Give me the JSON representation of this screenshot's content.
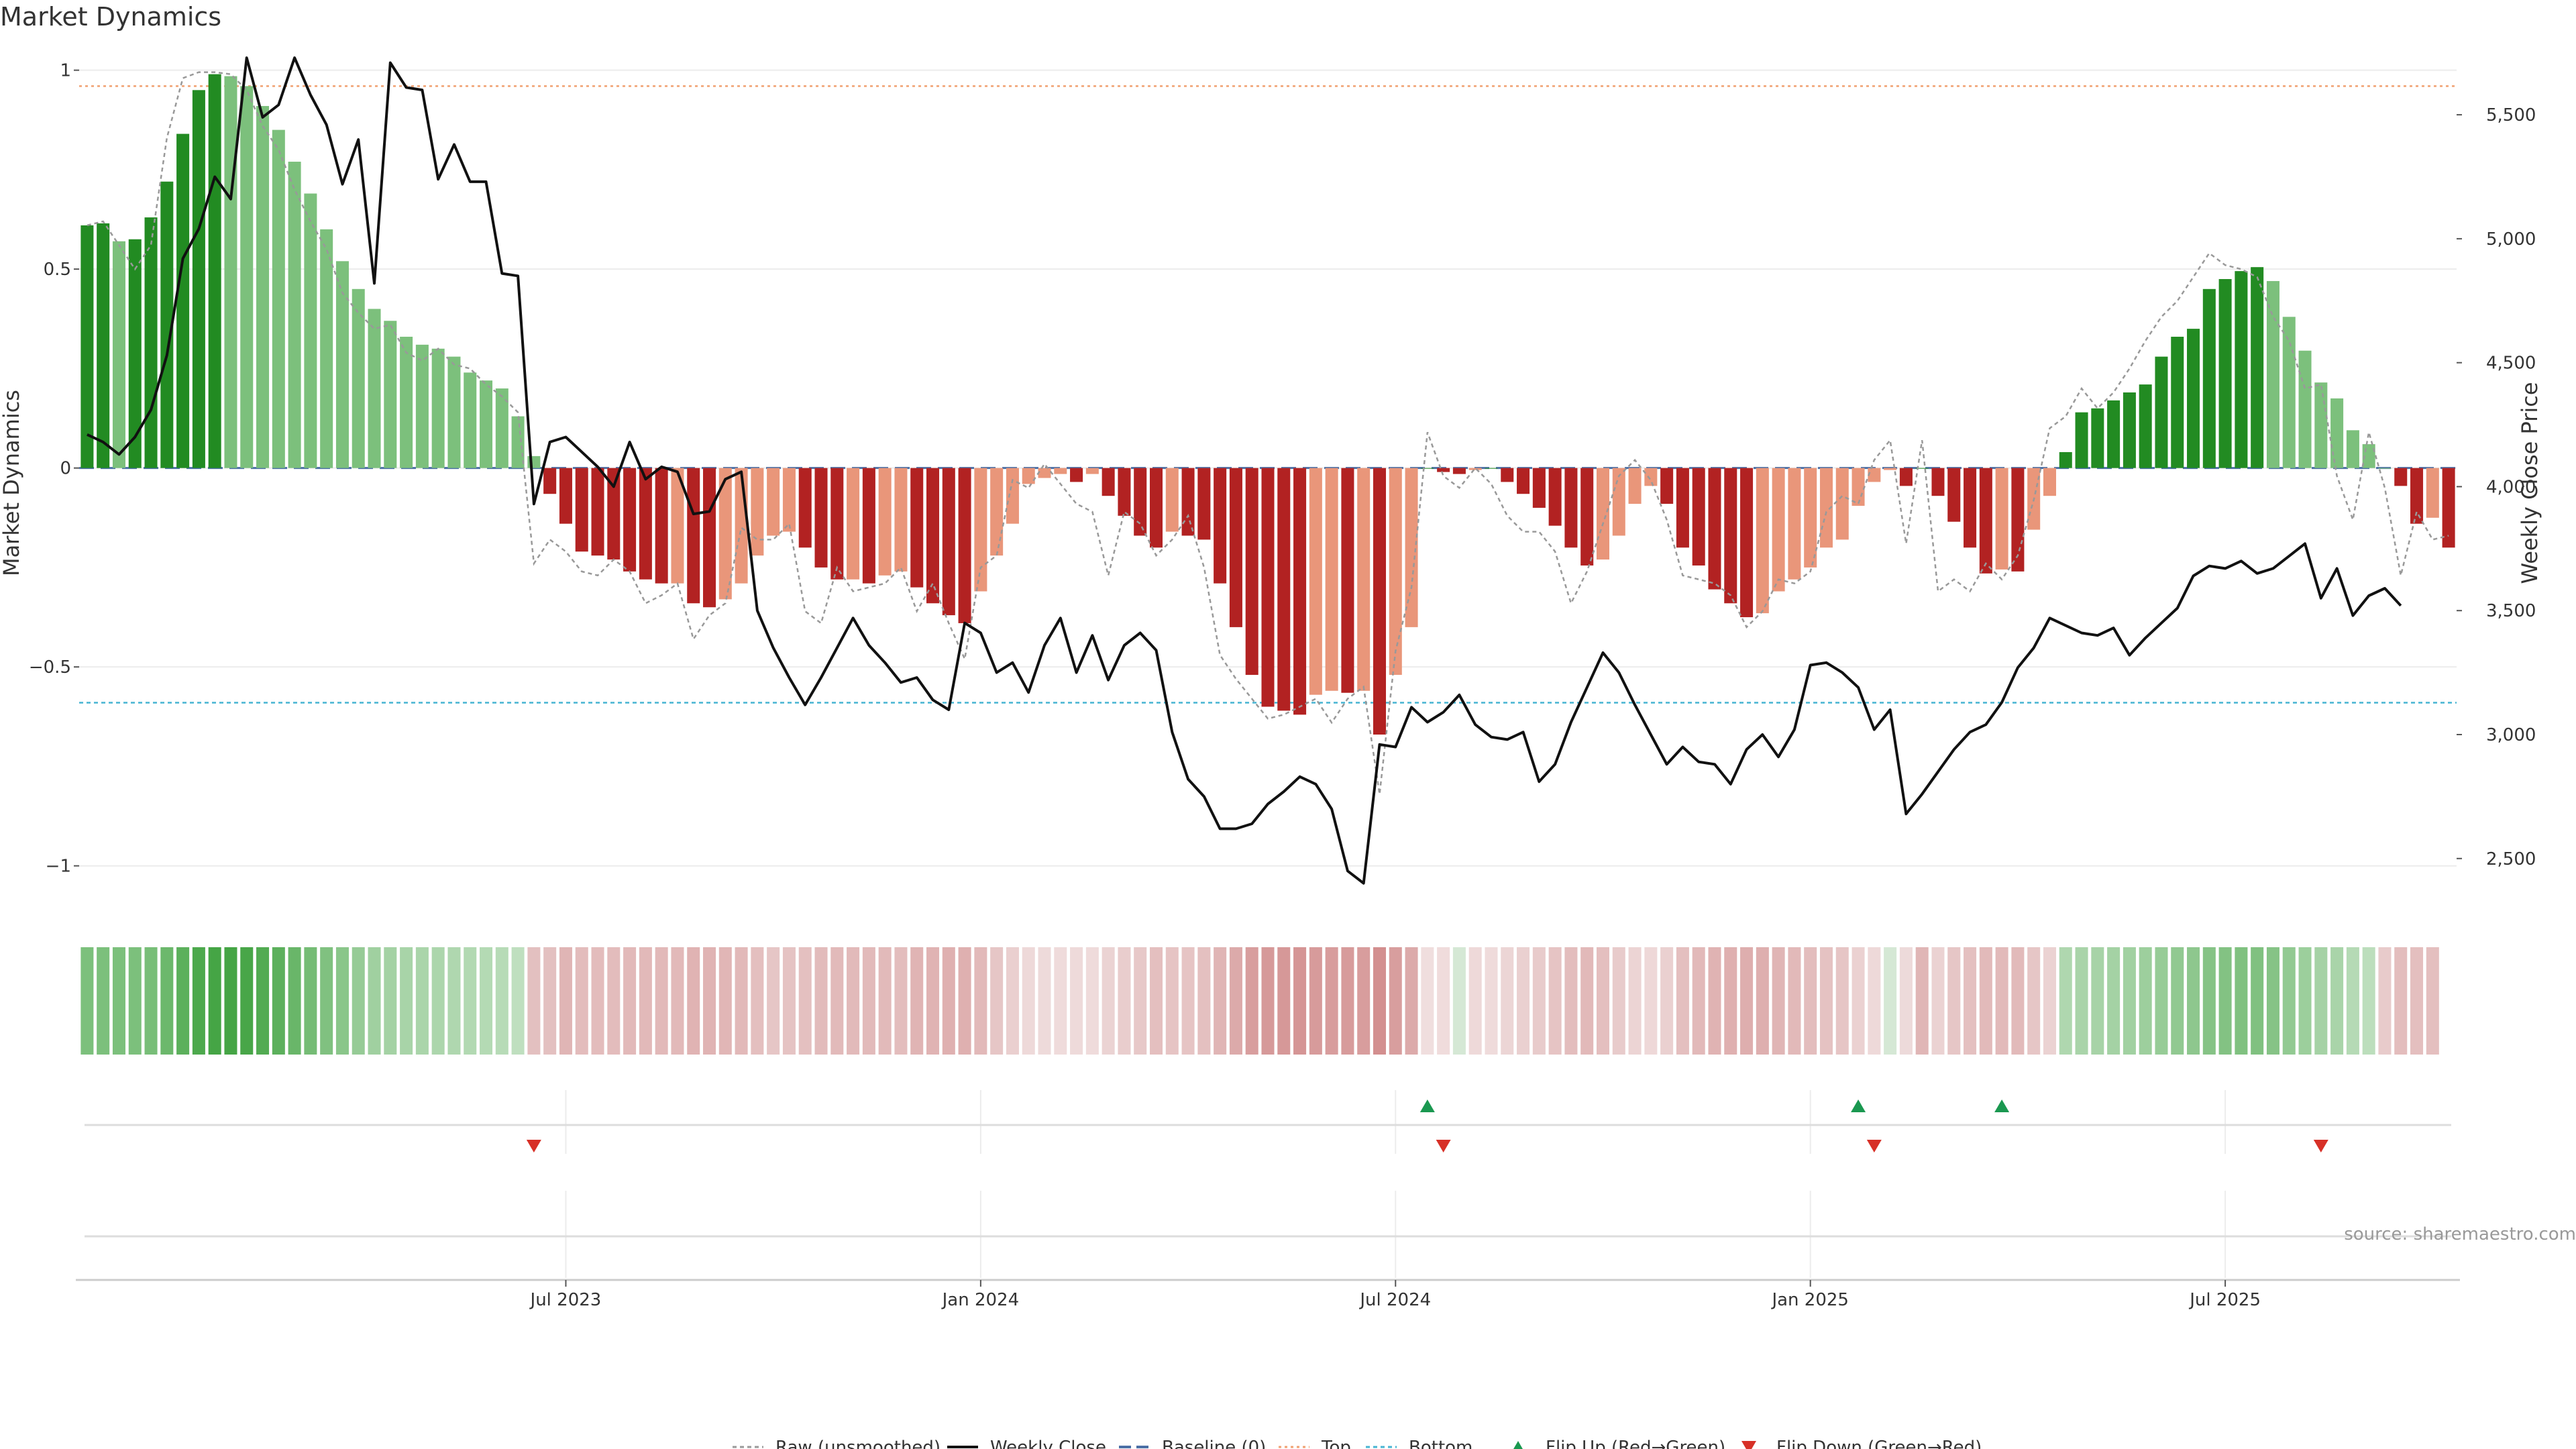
{
  "chart_data": {
    "type": "bar",
    "title": "Market Dynamics",
    "ylabel_left": "Market Dynamics",
    "ylabel_right": "Weekly Close Price",
    "ylim_left": [
      -1.1,
      1.05
    ],
    "ylim_right": [
      2310,
      5760
    ],
    "yticks_left": [
      {
        "value": 1,
        "label": "1"
      },
      {
        "value": 0.5,
        "label": "0.5"
      },
      {
        "value": 0,
        "label": "0"
      },
      {
        "value": -0.5,
        "label": "−0.5"
      },
      {
        "value": -1,
        "label": "−1"
      }
    ],
    "yticks_right": [
      {
        "value": 5500,
        "label": "5,500"
      },
      {
        "value": 5000,
        "label": "5,000"
      },
      {
        "value": 4500,
        "label": "4,500"
      },
      {
        "value": 4000,
        "label": "4,000"
      },
      {
        "value": 3500,
        "label": "3,500"
      },
      {
        "value": 3000,
        "label": "3,000"
      },
      {
        "value": 2500,
        "label": "2,500"
      }
    ],
    "xticks": [
      {
        "index": 30,
        "label": "Jul 2023"
      },
      {
        "index": 56,
        "label": "Jan 2024"
      },
      {
        "index": 82,
        "label": "Jul 2024"
      },
      {
        "index": 108,
        "label": "Jan 2025"
      },
      {
        "index": 134,
        "label": "Jul 2025"
      }
    ],
    "top_line": 0.96,
    "bottom_line": -0.59,
    "baseline": 0,
    "smoothed": [
      0.61,
      0.615,
      0.57,
      0.575,
      0.63,
      0.72,
      0.84,
      0.95,
      0.99,
      0.985,
      0.96,
      0.91,
      0.85,
      0.77,
      0.69,
      0.6,
      0.52,
      0.45,
      0.4,
      0.37,
      0.33,
      0.31,
      0.3,
      0.28,
      0.24,
      0.22,
      0.2,
      0.13,
      0.03,
      -0.065,
      -0.14,
      -0.21,
      -0.22,
      -0.23,
      -0.26,
      -0.28,
      -0.29,
      -0.29,
      -0.34,
      -0.35,
      -0.33,
      -0.29,
      -0.22,
      -0.17,
      -0.16,
      -0.2,
      -0.25,
      -0.28,
      -0.28,
      -0.29,
      -0.27,
      -0.26,
      -0.3,
      -0.34,
      -0.37,
      -0.39,
      -0.31,
      -0.22,
      -0.14,
      -0.04,
      -0.025,
      -0.015,
      -0.035,
      -0.015,
      -0.07,
      -0.12,
      -0.17,
      -0.2,
      -0.16,
      -0.17,
      -0.18,
      -0.29,
      -0.4,
      -0.52,
      -0.6,
      -0.61,
      -0.62,
      -0.57,
      -0.56,
      -0.565,
      -0.56,
      -0.67,
      -0.52,
      -0.4,
      0.0,
      -0.01,
      -0.015,
      -0.005,
      0.0,
      -0.035,
      -0.065,
      -0.1,
      -0.145,
      -0.2,
      -0.245,
      -0.23,
      -0.17,
      -0.09,
      -0.045,
      -0.09,
      -0.2,
      -0.245,
      -0.305,
      -0.34,
      -0.375,
      -0.365,
      -0.31,
      -0.28,
      -0.25,
      -0.2,
      -0.18,
      -0.095,
      -0.035,
      -0.005,
      -0.045,
      0.0,
      -0.07,
      -0.135,
      -0.2,
      -0.265,
      -0.255,
      -0.26,
      -0.155,
      -0.07,
      0.04,
      0.14,
      0.15,
      0.17,
      0.19,
      0.21,
      0.28,
      0.33,
      0.35,
      0.45,
      0.475,
      0.495,
      0.505,
      0.47,
      0.38,
      0.295,
      0.215,
      0.175,
      0.095,
      0.06,
      0.0,
      -0.045,
      -0.14,
      -0.125,
      -0.2
    ],
    "raw": [
      0.61,
      0.62,
      0.56,
      0.5,
      0.56,
      0.83,
      0.98,
      0.995,
      0.995,
      0.99,
      0.95,
      0.86,
      0.8,
      0.7,
      0.62,
      0.55,
      0.44,
      0.39,
      0.35,
      0.36,
      0.29,
      0.27,
      0.3,
      0.26,
      0.25,
      0.21,
      0.18,
      0.14,
      -0.24,
      -0.18,
      -0.21,
      -0.26,
      -0.27,
      -0.23,
      -0.26,
      -0.34,
      -0.32,
      -0.29,
      -0.43,
      -0.37,
      -0.34,
      -0.15,
      -0.18,
      -0.18,
      -0.14,
      -0.36,
      -0.39,
      -0.25,
      -0.31,
      -0.3,
      -0.29,
      -0.25,
      -0.36,
      -0.29,
      -0.39,
      -0.48,
      -0.25,
      -0.22,
      -0.03,
      -0.05,
      0.01,
      -0.04,
      -0.09,
      -0.11,
      -0.27,
      -0.11,
      -0.14,
      -0.22,
      -0.18,
      -0.12,
      -0.25,
      -0.47,
      -0.53,
      -0.58,
      -0.63,
      -0.62,
      -0.6,
      -0.58,
      -0.64,
      -0.58,
      -0.55,
      -0.82,
      -0.46,
      -0.3,
      0.09,
      -0.02,
      -0.05,
      0.0,
      -0.04,
      -0.12,
      -0.16,
      -0.16,
      -0.21,
      -0.34,
      -0.26,
      -0.14,
      -0.02,
      0.02,
      -0.03,
      -0.13,
      -0.27,
      -0.28,
      -0.29,
      -0.32,
      -0.4,
      -0.36,
      -0.28,
      -0.29,
      -0.26,
      -0.11,
      -0.07,
      -0.09,
      0.02,
      0.07,
      -0.19,
      0.07,
      -0.31,
      -0.28,
      -0.31,
      -0.24,
      -0.28,
      -0.22,
      -0.08,
      0.1,
      0.13,
      0.2,
      0.15,
      0.19,
      0.25,
      0.32,
      0.38,
      0.42,
      0.48,
      0.54,
      0.51,
      0.5,
      0.48,
      0.38,
      0.32,
      0.2,
      0.21,
      -0.02,
      -0.13,
      0.09,
      -0.05,
      -0.27,
      -0.11,
      -0.18,
      -0.17
    ],
    "weekly_close": [
      4210,
      4180,
      4130,
      4200,
      4310,
      4530,
      4920,
      5040,
      5250,
      5160,
      5730,
      5490,
      5540,
      5730,
      5580,
      5460,
      5220,
      5400,
      4820,
      5710,
      5610,
      5600,
      5240,
      5380,
      5230,
      5230,
      4860,
      4850,
      3930,
      4180,
      4200,
      4140,
      4080,
      4000,
      4180,
      4030,
      4080,
      4060,
      3890,
      3900,
      4030,
      4060,
      3500,
      3350,
      3230,
      3120,
      3230,
      3350,
      3470,
      3360,
      3290,
      3210,
      3230,
      3140,
      3100,
      3450,
      3410,
      3250,
      3290,
      3170,
      3360,
      3470,
      3250,
      3400,
      3220,
      3360,
      3410,
      3340,
      3010,
      2820,
      2750,
      2620,
      2620,
      2640,
      2720,
      2770,
      2830,
      2800,
      2700,
      2450,
      2400,
      2960,
      2950,
      3110,
      3050,
      3090,
      3160,
      3040,
      2990,
      2980,
      3010,
      2810,
      2880,
      3050,
      3190,
      3330,
      3250,
      3120,
      3000,
      2880,
      2950,
      2890,
      2880,
      2800,
      2940,
      3000,
      2910,
      3020,
      3280,
      3290,
      3250,
      3190,
      3020,
      3100,
      2680,
      2760,
      2850,
      2940,
      3010,
      3040,
      3130,
      3270,
      3350,
      3470,
      3440,
      3410,
      3400,
      3430,
      3320,
      3390,
      3450,
      3510,
      3640,
      3680,
      3670,
      3700,
      3650,
      3670,
      3720,
      3770,
      3550,
      3670,
      3480,
      3560,
      3590,
      3520
    ],
    "bar_colors": {
      "dark_green": "#228b22",
      "light_green": "#7cc07c",
      "dark_red": "#b22222",
      "light_red": "#e9967a"
    },
    "heat_colors": [
      "#7cc07c",
      "#7cc07c",
      "#7cc07c",
      "#7cc07c",
      "#78be78",
      "#6cb86c",
      "#5cb05c",
      "#4da94d",
      "#45a545",
      "#45a545",
      "#48a648",
      "#52ab52",
      "#5cb05c",
      "#69b669",
      "#75bc75",
      "#80c180",
      "#8ac68a",
      "#96cb96",
      "#a0d0a0",
      "#a4d2a4",
      "#a8d4a8",
      "#aad5aa",
      "#acd6ac",
      "#afd7af",
      "#b2d9b2",
      "#b4dab4",
      "#b7dbb7",
      "#bfdfbf",
      "#e3c0c0",
      "#e3c0c0",
      "#e0b5b5",
      "#e3bcbc",
      "#e3bcbc",
      "#e3bcbc",
      "#e2b9b9",
      "#e2b9b9",
      "#e2b9b9",
      "#e2b9b9",
      "#e0b3b3",
      "#e0b3b3",
      "#e1b6b6",
      "#e2b9b9",
      "#e4bfbf",
      "#e6c6c6",
      "#e5c3c3",
      "#e4c0c0",
      "#e2bbbb",
      "#e2baba",
      "#e2baba",
      "#e2baba",
      "#e2baba",
      "#e3bdbd",
      "#e0b4b4",
      "#e0b3b3",
      "#dfb0b0",
      "#dfb0b0",
      "#e2b9b9",
      "#e6c6c6",
      "#eacfcf",
      "#eed9d9",
      "#eedada",
      "#efdbdb",
      "#eedada",
      "#efdbdb",
      "#ebd3d3",
      "#e9cdcd",
      "#e7c8c8",
      "#e4bfbf",
      "#e6c4c4",
      "#e6c4c4",
      "#e4c0c0",
      "#e0b5b5",
      "#dcaaaa",
      "#d89e9e",
      "#d69999",
      "#d69898",
      "#d59595",
      "#d79b9b",
      "#d89d9d",
      "#d79b9b",
      "#d89d9d",
      "#d38f8f",
      "#d89e9e",
      "#dcaaaa",
      "#f0dede",
      "#f0dcdc",
      "#d5e8d5",
      "#eed9d9",
      "#efdbdb",
      "#ecd5d5",
      "#ead0d0",
      "#e8cbcb",
      "#e6c4c4",
      "#e3bdbd",
      "#e2b9b9",
      "#e4bfbf",
      "#e8cbcb",
      "#ecd4d4",
      "#eed8d8",
      "#ead0d0",
      "#e4bfbf",
      "#e2b9b9",
      "#e0b3b3",
      "#dfb0b0",
      "#deaeae",
      "#deafaf",
      "#e0b5b5",
      "#e2b9b9",
      "#e3bdbd",
      "#e5c2c2",
      "#e6c5c5",
      "#ebd1d1",
      "#eed9d9",
      "#d5e8d5",
      "#eddada",
      "#e0b6b6",
      "#ebd2d2",
      "#e6c6c6",
      "#e4c0c0",
      "#e2baba",
      "#e2baba",
      "#e2baba",
      "#e6c6c6",
      "#ebd2d2",
      "#afd7af",
      "#a9d4a9",
      "#a7d3a7",
      "#a4d2a4",
      "#a1d1a1",
      "#9dcf9d",
      "#97cc97",
      "#91c991",
      "#8ec78e",
      "#86c386",
      "#83c283",
      "#80c180",
      "#80c180",
      "#86c386",
      "#92ca92",
      "#9ccf9c",
      "#a5d2a5",
      "#a9d4a9",
      "#b5dab5",
      "#bcdebc",
      "#e8cbcb",
      "#e3bdbd",
      "#e4bfbf",
      "#e4bfbf"
    ],
    "flip_up": [
      {
        "index": 84
      },
      {
        "index": 111
      },
      {
        "index": 120
      }
    ],
    "flip_down": [
      {
        "index": 28
      },
      {
        "index": 85
      },
      {
        "index": 112
      },
      {
        "index": 140
      }
    ],
    "legend": [
      {
        "key": "raw",
        "label": "Raw (unsmoothed)"
      },
      {
        "key": "close",
        "label": "Weekly Close"
      },
      {
        "key": "baseline",
        "label": "Baseline (0)"
      },
      {
        "key": "top",
        "label": "Top"
      },
      {
        "key": "bottom",
        "label": "Bottom"
      },
      {
        "key": "flipup",
        "label": "Flip Up (Red→Green)"
      },
      {
        "key": "flipdown",
        "label": "Flip Down (Green→Red)"
      }
    ],
    "source": "source: sharemaestro.com"
  }
}
